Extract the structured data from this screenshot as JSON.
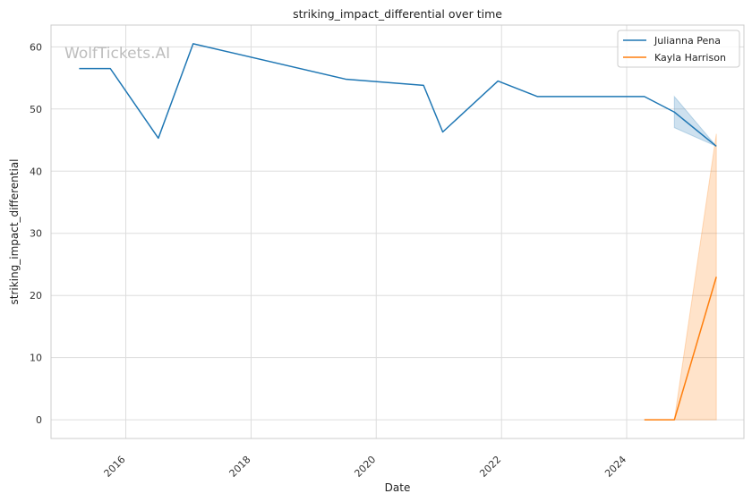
{
  "watermark": "WolfTickets.AI",
  "chart_data": {
    "type": "line",
    "title": "striking_impact_differential over time",
    "xlabel": "Date",
    "ylabel": "striking_impact_differential",
    "x_ticks": [
      "2016",
      "2018",
      "2020",
      "2022",
      "2024"
    ],
    "y_ticks": [
      0,
      10,
      20,
      30,
      40,
      50,
      60
    ],
    "xlim": [
      "2014-10-22",
      "2025-11-15"
    ],
    "ylim": [
      -3,
      63.5
    ],
    "grid": true,
    "legend_position": "top-right",
    "series": [
      {
        "name": "Julianna Pena",
        "color": "#1f77b4",
        "x": [
          "2015-04-04",
          "2015-10-03",
          "2016-07-09",
          "2017-01-28",
          "2019-07-06",
          "2020-10-03",
          "2021-01-23",
          "2021-12-11",
          "2022-07-30",
          "2024-04-13",
          "2024-10-05",
          "2025-06-07"
        ],
        "y": [
          56.5,
          56.5,
          45.3,
          60.5,
          54.8,
          53.8,
          46.3,
          54.5,
          52,
          52,
          49.5,
          44
        ],
        "ci": [
          {
            "x": "2024-10-05",
            "lower": 47,
            "upper": 52
          },
          {
            "x": "2025-06-07",
            "lower": 44,
            "upper": 44
          }
        ]
      },
      {
        "name": "Kayla Harrison",
        "color": "#ff7f0e",
        "x": [
          "2024-04-13",
          "2024-10-05",
          "2025-06-07"
        ],
        "y": [
          0,
          0,
          23
        ],
        "ci": [
          {
            "x": "2024-10-05",
            "lower": 0,
            "upper": 0
          },
          {
            "x": "2025-06-07",
            "lower": 0,
            "upper": 46
          }
        ]
      }
    ]
  }
}
